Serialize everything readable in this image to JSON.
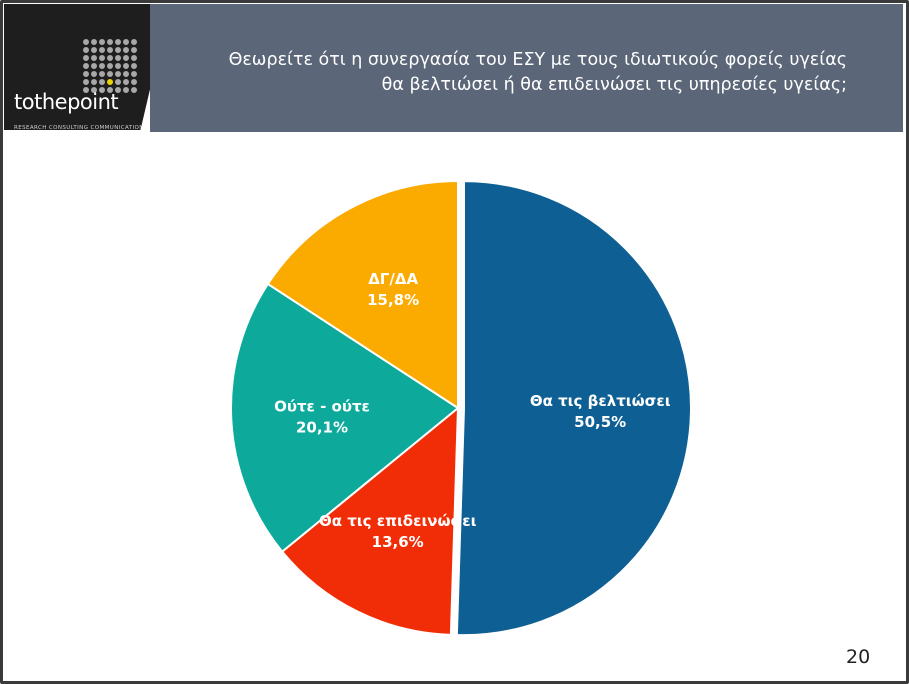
{
  "header": {
    "logo_text_a": "to",
    "logo_text_b": "the",
    "logo_text_c": "point",
    "logo_tagline": "RESEARCH  CONSULTING  COMMUNICATION",
    "title": "Θεωρείτε ότι η συνεργασία του ΕΣΥ με τους ιδιωτικούς φορείς υγείας θα βελτιώσει ή θα επιδεινώσει τις υπηρεσίες υγείας;"
  },
  "page_number": "20",
  "chart_data": {
    "type": "pie",
    "title": "Θεωρείτε ότι η συνεργασία του ΕΣΥ με τους ιδιωτικούς φορείς υγείας θα βελτιώσει ή θα επιδεινώσει τις υπηρεσίες υγείας;",
    "slices": [
      {
        "label": "Θα τις βελτιώσει",
        "value": 50.5,
        "value_label": "50,5%",
        "color": "#0e5f93"
      },
      {
        "label": "Θα τις επιδεινώσει",
        "value": 13.6,
        "value_label": "13,6%",
        "color": "#f12d07"
      },
      {
        "label": "Ούτε - ούτε",
        "value": 20.1,
        "value_label": "20,1%",
        "color": "#0daa9c"
      },
      {
        "label": "ΔΓ/ΔΑ",
        "value": 15.8,
        "value_label": "15,8%",
        "color": "#fbaa00"
      }
    ],
    "start_angle_deg": 0,
    "direction": "clockwise",
    "exploded_slice": "Θα τις βελτιώσει"
  }
}
